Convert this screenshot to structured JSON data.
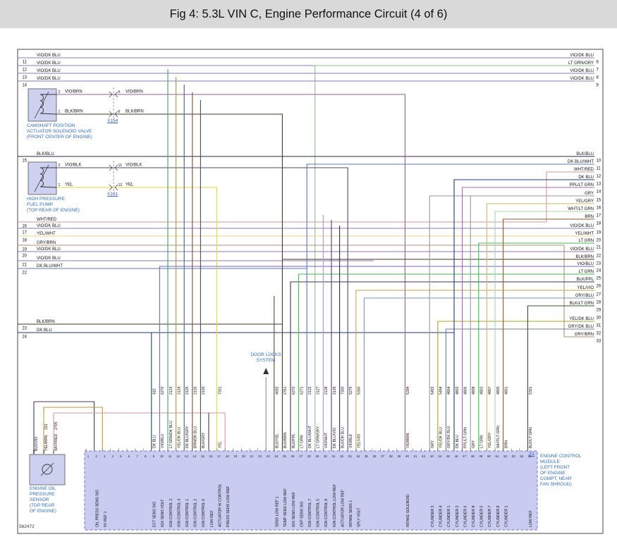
{
  "title": "Fig 4: 5.3L VIN C, Engine Performance Circuit (4 of 6)",
  "doc_number": "562472",
  "door_locks": {
    "label": "DOOR LOCKS\nSYSTEM"
  },
  "colors": {
    "VIO/DK BLU": "#8f7bb5",
    "VIO/BRN": "#9a5f96",
    "BLK/BRN": "#463726",
    "BLK/BLU": "#2a2a44",
    "VIO/BLK": "#5e4470",
    "YEL": "#e3d64b",
    "WHT/RED": "#cf9a9a",
    "YEL/WHT": "#ddd48f",
    "GRY/BRN": "#a89274",
    "DK BLU/WHT": "#5a7aa6",
    "DK BLU": "#1f3d6e",
    "BLK/VIO": "#453a5c",
    "YEL/BRN": "#bb9a3d",
    "LT GRN/GRY": "#8fbf8f",
    "LT GRN": "#46b554",
    "PPL/LT GRN": "#a667b8",
    "GRY": "#9a9a9a",
    "YEL/GRY": "#c5bd6a",
    "WHT/LT GRN": "#a9d6a9",
    "BRN": "#8a5a32",
    "VIO/BLU": "#7a62c9",
    "BLK/PPL": "#3f3050",
    "YEL/VIO": "#c0a656",
    "GRY/BLU": "#7e93b4",
    "BLK/LT GRN": "#33502f",
    "YEL/DK BLU": "#ab9b35",
    "GRY/DK BLU": "#6d7e9a",
    "VIO/WHT": "#b493cf",
    "DK BLU/VIO": "#4a3f93",
    "BLK/DK BLU": "#272f47",
    "BLK/YEL": "#55512a",
    "BLK/GRY": "#4c4c4c",
    "DK BLU/GRY": "#49607f",
    "BRN/DK BLU": "#6e4e3c",
    "LT GRN/DK BLU": "#3f9d74"
  },
  "left_rows": [
    {
      "pin": "11",
      "label": "VIO/DK BLU"
    },
    {
      "pin": "12",
      "label": "VIO/DK BLU"
    },
    {
      "pin": "13",
      "label": "VIO/DK BLU"
    },
    {
      "pin": "14",
      "label": "VIO/DK BLU"
    },
    {
      "pin": "15",
      "label": "BLK/BLU"
    },
    {
      "pin": "16",
      "label": "WHT/RED"
    },
    {
      "pin": "17",
      "label": "VIO/DK BLU"
    },
    {
      "pin": "18",
      "label": "YEL/WHT"
    },
    {
      "pin": "19",
      "label": "GRY/BRN"
    },
    {
      "pin": "20",
      "label": "VIO/DK BLU"
    },
    {
      "pin": "21",
      "label": "VIO/DK BLU"
    },
    {
      "pin": "22",
      "label": "DK BLU/WHT"
    },
    {
      "pin": "23",
      "label": "BLK/BRN"
    },
    {
      "pin": "24",
      "label": "DK BLU"
    }
  ],
  "right_rows_top": [
    {
      "pin": "6",
      "label": "VIO/DK BLU"
    },
    {
      "pin": "7",
      "label": "LT GRN/GRY"
    },
    {
      "pin": "8",
      "label": "VIO/DK BLU"
    },
    {
      "pin": "9",
      "label": "VIO/DK BLU"
    }
  ],
  "right_rows": [
    {
      "pin": "10",
      "label": "BLK/BLU"
    },
    {
      "pin": "11",
      "label": "DK BLU/WHT"
    },
    {
      "pin": "12",
      "label": "WHT/RED"
    },
    {
      "pin": "13",
      "label": "DK BLU"
    },
    {
      "pin": "14",
      "label": "PPL/LT GRN"
    },
    {
      "pin": "15",
      "label": "GRY"
    },
    {
      "pin": "16",
      "label": "YEL/GRY"
    },
    {
      "pin": "17",
      "label": "WHT/LT GRN"
    },
    {
      "pin": "18",
      "label": "BRN"
    },
    {
      "pin": "19",
      "label": "VIO/DK BLU"
    },
    {
      "pin": "20",
      "label": "YEL/WHT"
    },
    {
      "pin": "21",
      "label": "LT GRN"
    },
    {
      "pin": "22",
      "label": "VIO/DK BLU"
    },
    {
      "pin": "23",
      "label": "BLK/BRN"
    },
    {
      "pin": "24",
      "label": "VIO/BLU"
    },
    {
      "pin": "25",
      "label": "LT GRN"
    },
    {
      "pin": "26",
      "label": "BLK/PPL"
    },
    {
      "pin": "27",
      "label": "YEL/VIO"
    },
    {
      "pin": "28",
      "label": "GRY/BLU"
    },
    {
      "pin": "29",
      "label": "BLK/LT GRN"
    },
    {
      "pin": "30",
      "label": ""
    },
    {
      "pin": "31",
      "label": "YEL/DK BLU"
    },
    {
      "pin": "32",
      "label": "GRY/DK BLU"
    },
    {
      "pin": "33",
      "label": "GRY/BRN"
    }
  ],
  "ecm_pins": [
    {
      "pin": "2",
      "label": "OIL PRESS SENS SIG",
      "wire": "",
      "color": ""
    },
    {
      "pin": "3",
      "label": "5V REF 1",
      "wire": "",
      "color": ""
    },
    {
      "pin": "9",
      "label": "ECT SENS SIG",
      "wire": "410",
      "color": "DK BLU"
    },
    {
      "pin": "10",
      "label": "60X SENS VOLT",
      "wire": "6270",
      "color": "VIO/BLU"
    },
    {
      "pin": "11",
      "label": "IGN CONTROL 3",
      "wire": "2123",
      "color": "LT GRN/DK BLU"
    },
    {
      "pin": "12",
      "label": "IGN CONTROL 4",
      "wire": "2124",
      "color": "YEL/DK BLU"
    },
    {
      "pin": "13",
      "label": "IGN CONTROL 1",
      "wire": "2125",
      "color": "DK BLU/GRY"
    },
    {
      "pin": "14",
      "label": "IGN CONTROL 2",
      "wire": "2126",
      "color": "BRN/DK BLU"
    },
    {
      "pin": "15",
      "label": "IGN CONTROL 6",
      "wire": "2130",
      "color": "BLK/GRY"
    },
    {
      "pin": "16",
      "label": "LOW REF",
      "wire": "",
      "color": ""
    },
    {
      "pin": "17",
      "label": "ACTUATOR HI CONTROL",
      "wire": "7301",
      "color": "YEL"
    },
    {
      "pin": "18",
      "label": "PRESS SENS LOW REF",
      "wire": "",
      "color": ""
    },
    {
      "pin": "24",
      "label": "SENS LOW REF 1",
      "wire": "4692",
      "color": "BLK/YEL"
    },
    {
      "pin": "25",
      "label": "TEMP SENS LOW REF",
      "wire": "2761",
      "color": "BLK/BRN"
    },
    {
      "pin": "26",
      "label": "60X SENS LOW REF",
      "wire": "6272",
      "color": "BLK/PPL"
    },
    {
      "pin": "27",
      "label": "CKP SENS SIG",
      "wire": "6271",
      "color": "LT GRN"
    },
    {
      "pin": "28",
      "label": "IGN CONTROL 7",
      "wire": "2122",
      "color": "DK BLU/WHT"
    },
    {
      "pin": "29",
      "label": "IGN CONTROL 5",
      "wire": "2127",
      "color": "LT GRN/GRY"
    },
    {
      "pin": "30",
      "label": "IGN CONTROL 8",
      "wire": "2128",
      "color": "VIO/WHT"
    },
    {
      "pin": "31",
      "label": "IGN CONTROL LOW REF",
      "wire": "2129",
      "color": "DK BLU/VIO"
    },
    {
      "pin": "32",
      "label": "ACTUATOR LOW REF",
      "wire": "7300",
      "color": "BLK/DK BLU"
    },
    {
      "pin": "33",
      "label": "INTAKE SENS 1",
      "wire": "5275",
      "color": "VIO/BLK"
    },
    {
      "pin": "34",
      "label": "SPLY VOLT",
      "wire": "5360",
      "color": "YEL/VIO"
    },
    {
      "pin": "40",
      "label": "INTAKE SOLENOID",
      "wire": "5294",
      "color": "VIO/BRN"
    },
    {
      "pin": "43",
      "label": "CYLINDER 3",
      "wire": "5493",
      "color": "GRY"
    },
    {
      "pin": "44",
      "label": "CYLINDER 4",
      "wire": "5494",
      "color": "YEL/DK BLU"
    },
    {
      "pin": "45",
      "label": "CYLINDER 1",
      "wire": "4804",
      "color": "GRY/DK BLU"
    },
    {
      "pin": "46",
      "label": "CYLINDER 2",
      "wire": "4802",
      "color": "DK BLU"
    },
    {
      "pin": "47",
      "label": "CYLINDER 6",
      "wire": "4806",
      "color": "PPL/LT GRN"
    },
    {
      "pin": "48",
      "label": "CYLINDER 8",
      "wire": "4808",
      "color": "GRY"
    },
    {
      "pin": "49",
      "label": "CYLINDER 5",
      "wire": "4803",
      "color": "LT GRN"
    },
    {
      "pin": "50",
      "label": "CYLINDER 7",
      "wire": "4807",
      "color": "YEL/GRY"
    },
    {
      "pin": "51",
      "label": "CYLINDER 8",
      "wire": "4805",
      "color": "WHT/LT GRN"
    },
    {
      "pin": "52",
      "label": "CYLINDER 1",
      "wire": "4801",
      "color": "BRN"
    },
    {
      "pin": "55",
      "label": "LOW REF",
      "wire": "5301",
      "color": "BLK/LT GRN"
    }
  ],
  "components": {
    "camshaft": {
      "caption": "CAMSHAFT POSITION\nACTUATOR SOLENOID VALVE\n(FRONT CENTER OF ENGINE)",
      "connector": "X154",
      "pins": [
        {
          "pin": "2",
          "conn_pin": "5",
          "color": "VIO/BRN"
        },
        {
          "pin": "1",
          "conn_pin": "6",
          "color": "BLK/BRN"
        }
      ]
    },
    "fuel_pump": {
      "caption": "HIGH PRESSURE\nFUEL PUMP\n(TOP REAR OF ENGINE)",
      "connector": "X161",
      "pins": [
        {
          "pin": "2",
          "conn_pin": "11",
          "color": "VIO/BLK"
        },
        {
          "pin": "1",
          "conn_pin": "12",
          "color": "YEL"
        }
      ]
    },
    "oil_sensor": {
      "caption": "ENGINE OIL\nPRESSURE\nSENSOR\n(TOP REAR\nOF ENGINE)",
      "pins": [
        {
          "pin": "2",
          "color": "BLK/VIO",
          "wire": ""
        },
        {
          "pin": "3",
          "color": "YEL/BRN",
          "wire": "331"
        },
        {
          "pin": "1",
          "color": "WHT/RED",
          "wire": "2705"
        }
      ]
    },
    "ecm": {
      "caption": "ENGINE CONTROL\nMODULE\n(LEFT FRONT\nOF ENGINE\nCOMPT, NEAR\nFAN SHROUD)",
      "connector": "X1"
    }
  }
}
